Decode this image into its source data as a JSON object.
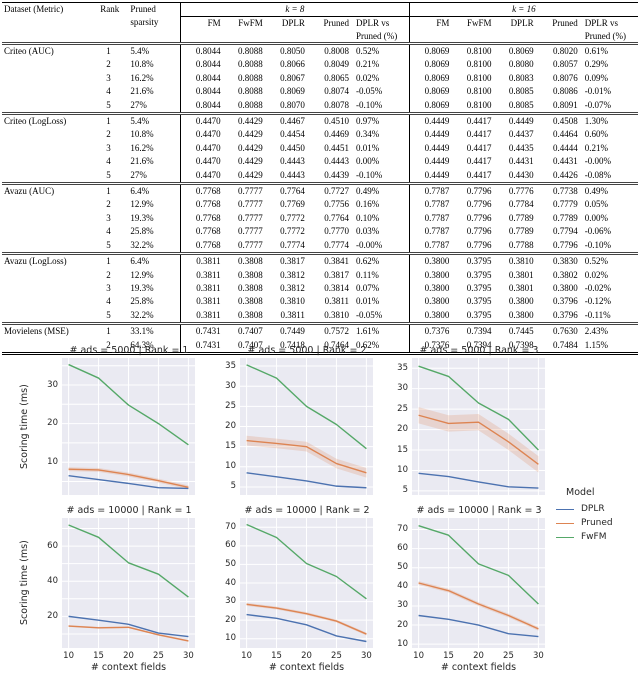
{
  "table": {
    "header": {
      "dataset": "Dataset (Metric)",
      "rank": "Rank",
      "sparsity": "Pruned sparsity",
      "k8": "k = 8",
      "k16": "k = 16",
      "sub": [
        "FM",
        "FwFM",
        "DPLR",
        "Pruned",
        "DPLR vs Pruned (%)"
      ]
    },
    "groups": [
      {
        "dataset": "Criteo (AUC)",
        "rows": [
          {
            "rank": "1",
            "sparsity": "5.4%",
            "k8": [
              "0.8044",
              "0.8088",
              "0.8050",
              "0.8008",
              "0.52%"
            ],
            "k16": [
              "0.8069",
              "0.8100",
              "0.8069",
              "0.8020",
              "0.61%"
            ]
          },
          {
            "rank": "2",
            "sparsity": "10.8%",
            "k8": [
              "0.8044",
              "0.8088",
              "0.8066",
              "0.8049",
              "0.21%"
            ],
            "k16": [
              "0.8069",
              "0.8100",
              "0.8080",
              "0.8057",
              "0.29%"
            ]
          },
          {
            "rank": "3",
            "sparsity": "16.2%",
            "k8": [
              "0.8044",
              "0.8088",
              "0.8067",
              "0.8065",
              "0.02%"
            ],
            "k16": [
              "0.8069",
              "0.8100",
              "0.8083",
              "0.8076",
              "0.09%"
            ]
          },
          {
            "rank": "4",
            "sparsity": "21.6%",
            "k8": [
              "0.8044",
              "0.8088",
              "0.8069",
              "0.8074",
              "-0.05%"
            ],
            "k16": [
              "0.8069",
              "0.8100",
              "0.8085",
              "0.8086",
              "-0.01%"
            ]
          },
          {
            "rank": "5",
            "sparsity": "27%",
            "k8": [
              "0.8044",
              "0.8088",
              "0.8070",
              "0.8078",
              "-0.10%"
            ],
            "k16": [
              "0.8069",
              "0.8100",
              "0.8085",
              "0.8091",
              "-0.07%"
            ]
          }
        ]
      },
      {
        "dataset": "Criteo (LogLoss)",
        "rows": [
          {
            "rank": "1",
            "sparsity": "5.4%",
            "k8": [
              "0.4470",
              "0.4429",
              "0.4467",
              "0.4510",
              "0.97%"
            ],
            "k16": [
              "0.4449",
              "0.4417",
              "0.4449",
              "0.4508",
              "1.30%"
            ]
          },
          {
            "rank": "2",
            "sparsity": "10.8%",
            "k8": [
              "0.4470",
              "0.4429",
              "0.4454",
              "0.4469",
              "0.34%"
            ],
            "k16": [
              "0.4449",
              "0.4417",
              "0.4437",
              "0.4464",
              "0.60%"
            ]
          },
          {
            "rank": "3",
            "sparsity": "16.2%",
            "k8": [
              "0.4470",
              "0.4429",
              "0.4450",
              "0.4451",
              "0.01%"
            ],
            "k16": [
              "0.4449",
              "0.4417",
              "0.4435",
              "0.4444",
              "0.21%"
            ]
          },
          {
            "rank": "4",
            "sparsity": "21.6%",
            "k8": [
              "0.4470",
              "0.4429",
              "0.4443",
              "0.4443",
              "0.00%"
            ],
            "k16": [
              "0.4449",
              "0.4417",
              "0.4431",
              "0.4431",
              "-0.00%"
            ]
          },
          {
            "rank": "5",
            "sparsity": "27%",
            "k8": [
              "0.4470",
              "0.4429",
              "0.4443",
              "0.4439",
              "-0.10%"
            ],
            "k16": [
              "0.4449",
              "0.4417",
              "0.4430",
              "0.4426",
              "-0.08%"
            ]
          }
        ]
      },
      {
        "dataset": "Avazu (AUC)",
        "rows": [
          {
            "rank": "1",
            "sparsity": "6.4%",
            "k8": [
              "0.7768",
              "0.7777",
              "0.7764",
              "0.7727",
              "0.49%"
            ],
            "k16": [
              "0.7787",
              "0.7796",
              "0.7776",
              "0.7738",
              "0.49%"
            ]
          },
          {
            "rank": "2",
            "sparsity": "12.9%",
            "k8": [
              "0.7768",
              "0.7777",
              "0.7769",
              "0.7756",
              "0.16%"
            ],
            "k16": [
              "0.7787",
              "0.7796",
              "0.7784",
              "0.7779",
              "0.05%"
            ]
          },
          {
            "rank": "3",
            "sparsity": "19.3%",
            "k8": [
              "0.7768",
              "0.7777",
              "0.7772",
              "0.7764",
              "0.10%"
            ],
            "k16": [
              "0.7787",
              "0.7796",
              "0.7789",
              "0.7789",
              "0.00%"
            ]
          },
          {
            "rank": "4",
            "sparsity": "25.8%",
            "k8": [
              "0.7768",
              "0.7777",
              "0.7772",
              "0.7770",
              "0.03%"
            ],
            "k16": [
              "0.7787",
              "0.7796",
              "0.7789",
              "0.7794",
              "-0.06%"
            ]
          },
          {
            "rank": "5",
            "sparsity": "32.2%",
            "k8": [
              "0.7768",
              "0.7777",
              "0.7774",
              "0.7774",
              "-0.00%"
            ],
            "k16": [
              "0.7787",
              "0.7796",
              "0.7788",
              "0.7796",
              "-0.10%"
            ]
          }
        ]
      },
      {
        "dataset": "Avazu (LogLoss)",
        "rows": [
          {
            "rank": "1",
            "sparsity": "6.4%",
            "k8": [
              "0.3811",
              "0.3808",
              "0.3817",
              "0.3841",
              "0.62%"
            ],
            "k16": [
              "0.3800",
              "0.3795",
              "0.3810",
              "0.3830",
              "0.52%"
            ]
          },
          {
            "rank": "2",
            "sparsity": "12.9%",
            "k8": [
              "0.3811",
              "0.3808",
              "0.3812",
              "0.3817",
              "0.11%"
            ],
            "k16": [
              "0.3800",
              "0.3795",
              "0.3801",
              "0.3802",
              "0.02%"
            ]
          },
          {
            "rank": "3",
            "sparsity": "19.3%",
            "k8": [
              "0.3811",
              "0.3808",
              "0.3812",
              "0.3814",
              "0.07%"
            ],
            "k16": [
              "0.3800",
              "0.3795",
              "0.3801",
              "0.3800",
              "-0.02%"
            ]
          },
          {
            "rank": "4",
            "sparsity": "25.8%",
            "k8": [
              "0.3811",
              "0.3808",
              "0.3810",
              "0.3811",
              "0.01%"
            ],
            "k16": [
              "0.3800",
              "0.3795",
              "0.3800",
              "0.3796",
              "-0.12%"
            ]
          },
          {
            "rank": "5",
            "sparsity": "32.2%",
            "k8": [
              "0.3811",
              "0.3808",
              "0.3811",
              "0.3810",
              "-0.05%"
            ],
            "k16": [
              "0.3800",
              "0.3795",
              "0.3800",
              "0.3796",
              "-0.11%"
            ]
          }
        ]
      },
      {
        "dataset": "Movielens (MSE)",
        "rows": [
          {
            "rank": "1",
            "sparsity": "33.1%",
            "k8": [
              "0.7431",
              "0.7407",
              "0.7449",
              "0.7572",
              "1.61%"
            ],
            "k16": [
              "0.7376",
              "0.7394",
              "0.7445",
              "0.7630",
              "2.43%"
            ]
          },
          {
            "rank": "2",
            "sparsity": "64.3%",
            "k8": [
              "0.7431",
              "0.7407",
              "0.7418",
              "0.7464",
              "0.62%"
            ],
            "k16": [
              "0.7376",
              "0.7394",
              "0.7398",
              "0.7484",
              "1.15%"
            ]
          }
        ]
      }
    ]
  },
  "figure": {
    "ylabel": "Scoring time (ms)",
    "xlabel": "# context fields",
    "legend": {
      "title": "Model",
      "entries": [
        {
          "label": "DPLR",
          "color": "#4c72b0"
        },
        {
          "label": "Pruned",
          "color": "#dd8452"
        },
        {
          "label": "FwFM",
          "color": "#55a868"
        }
      ]
    },
    "colors": {
      "plot_bg": "#eaeaf2",
      "grid": "#ffffff"
    }
  },
  "chart_data": [
    {
      "type": "line",
      "title": "# ads = 5000 | Rank = 1",
      "x": [
        10,
        15,
        20,
        25,
        30
      ],
      "xlabel": "",
      "ylabel": "Scoring time (ms)",
      "series": [
        {
          "name": "DPLR",
          "values": [
            6.5,
            5.5,
            4.5,
            3.4,
            3.2
          ]
        },
        {
          "name": "Pruned",
          "values": [
            8.2,
            8.0,
            6.8,
            5.2,
            3.5
          ],
          "band": 0.5
        },
        {
          "name": "FwFM",
          "values": [
            35.3,
            31.8,
            24.8,
            20.0,
            14.5
          ]
        }
      ],
      "ylim": [
        1.5,
        37
      ],
      "grid_y": [
        5,
        10,
        15,
        20,
        25,
        30,
        35
      ],
      "ytick_labels": [
        10,
        20,
        30
      ]
    },
    {
      "type": "line",
      "title": "# ads = 5000 | Rank = 2",
      "x": [
        10,
        15,
        20,
        25,
        30
      ],
      "xlabel": "",
      "ylabel": "",
      "series": [
        {
          "name": "DPLR",
          "values": [
            8.5,
            7.5,
            6.5,
            5.2,
            4.8
          ]
        },
        {
          "name": "Pruned",
          "values": [
            16.5,
            15.8,
            15.0,
            10.8,
            8.5
          ],
          "band": 1.2
        },
        {
          "name": "FwFM",
          "values": [
            35.3,
            32.0,
            25.0,
            20.5,
            14.5
          ]
        }
      ],
      "ylim": [
        3,
        37
      ],
      "grid_y": [
        5,
        10,
        15,
        20,
        25,
        30,
        35
      ],
      "ytick_labels": [
        5,
        10,
        15,
        20,
        25,
        30,
        35
      ]
    },
    {
      "type": "line",
      "title": "# ads = 5000 | Rank = 3",
      "x": [
        10,
        15,
        20,
        25,
        30
      ],
      "xlabel": "",
      "ylabel": "",
      "series": [
        {
          "name": "DPLR",
          "values": [
            9.3,
            8.5,
            7.2,
            6.0,
            5.7
          ]
        },
        {
          "name": "Pruned",
          "values": [
            23.5,
            21.5,
            21.8,
            17.0,
            11.5
          ],
          "band": 2.0
        },
        {
          "name": "FwFM",
          "values": [
            35.5,
            33.0,
            26.5,
            22.5,
            15.0
          ]
        }
      ],
      "ylim": [
        4,
        37.5
      ],
      "grid_y": [
        5,
        10,
        15,
        20,
        25,
        30,
        35
      ],
      "ytick_labels": [
        5,
        10,
        15,
        20,
        25,
        30,
        35
      ]
    },
    {
      "type": "line",
      "title": "# ads = 10000 | Rank = 1",
      "x": [
        10,
        15,
        20,
        25,
        30
      ],
      "xlabel": "# context fields",
      "ylabel": "Scoring time (ms)",
      "series": [
        {
          "name": "DPLR",
          "values": [
            20.0,
            17.8,
            15.5,
            10.5,
            8.5
          ]
        },
        {
          "name": "Pruned",
          "values": [
            14.5,
            13.5,
            13.8,
            9.5,
            6.0
          ],
          "band": 0.5
        },
        {
          "name": "FwFM",
          "values": [
            72.0,
            65.0,
            50.5,
            44.0,
            31.0
          ]
        }
      ],
      "ylim": [
        2,
        76
      ],
      "grid_y": [
        10,
        20,
        30,
        40,
        50,
        60,
        70
      ],
      "ytick_labels": [
        20,
        40,
        60
      ]
    },
    {
      "type": "line",
      "title": "# ads = 10000 | Rank = 2",
      "x": [
        10,
        15,
        20,
        25,
        30
      ],
      "xlabel": "# context fields",
      "ylabel": "",
      "series": [
        {
          "name": "DPLR",
          "values": [
            23.0,
            21.0,
            17.5,
            11.5,
            8.5
          ]
        },
        {
          "name": "Pruned",
          "values": [
            28.5,
            26.5,
            23.5,
            19.5,
            12.5
          ],
          "band": 0.8
        },
        {
          "name": "FwFM",
          "values": [
            71.5,
            64.5,
            50.5,
            43.5,
            31.5
          ]
        }
      ],
      "ylim": [
        5,
        75
      ],
      "grid_y": [
        10,
        20,
        30,
        40,
        50,
        60,
        70
      ],
      "ytick_labels": [
        10,
        20,
        30,
        40,
        50,
        60,
        70
      ]
    },
    {
      "type": "line",
      "title": "# ads = 10000 | Rank = 3",
      "x": [
        10,
        15,
        20,
        25,
        30
      ],
      "xlabel": "# context fields",
      "ylabel": "",
      "series": [
        {
          "name": "DPLR",
          "values": [
            25.0,
            23.0,
            20.0,
            15.5,
            14.0
          ]
        },
        {
          "name": "Pruned",
          "values": [
            42.0,
            38.0,
            31.0,
            25.0,
            18.0
          ],
          "band": 1.0
        },
        {
          "name": "FwFM",
          "values": [
            72.0,
            67.0,
            52.0,
            46.0,
            31.0
          ]
        }
      ],
      "ylim": [
        8,
        76
      ],
      "grid_y": [
        10,
        20,
        30,
        40,
        50,
        60,
        70
      ],
      "ytick_labels": [
        10,
        20,
        30,
        40,
        50,
        60,
        70
      ]
    }
  ]
}
